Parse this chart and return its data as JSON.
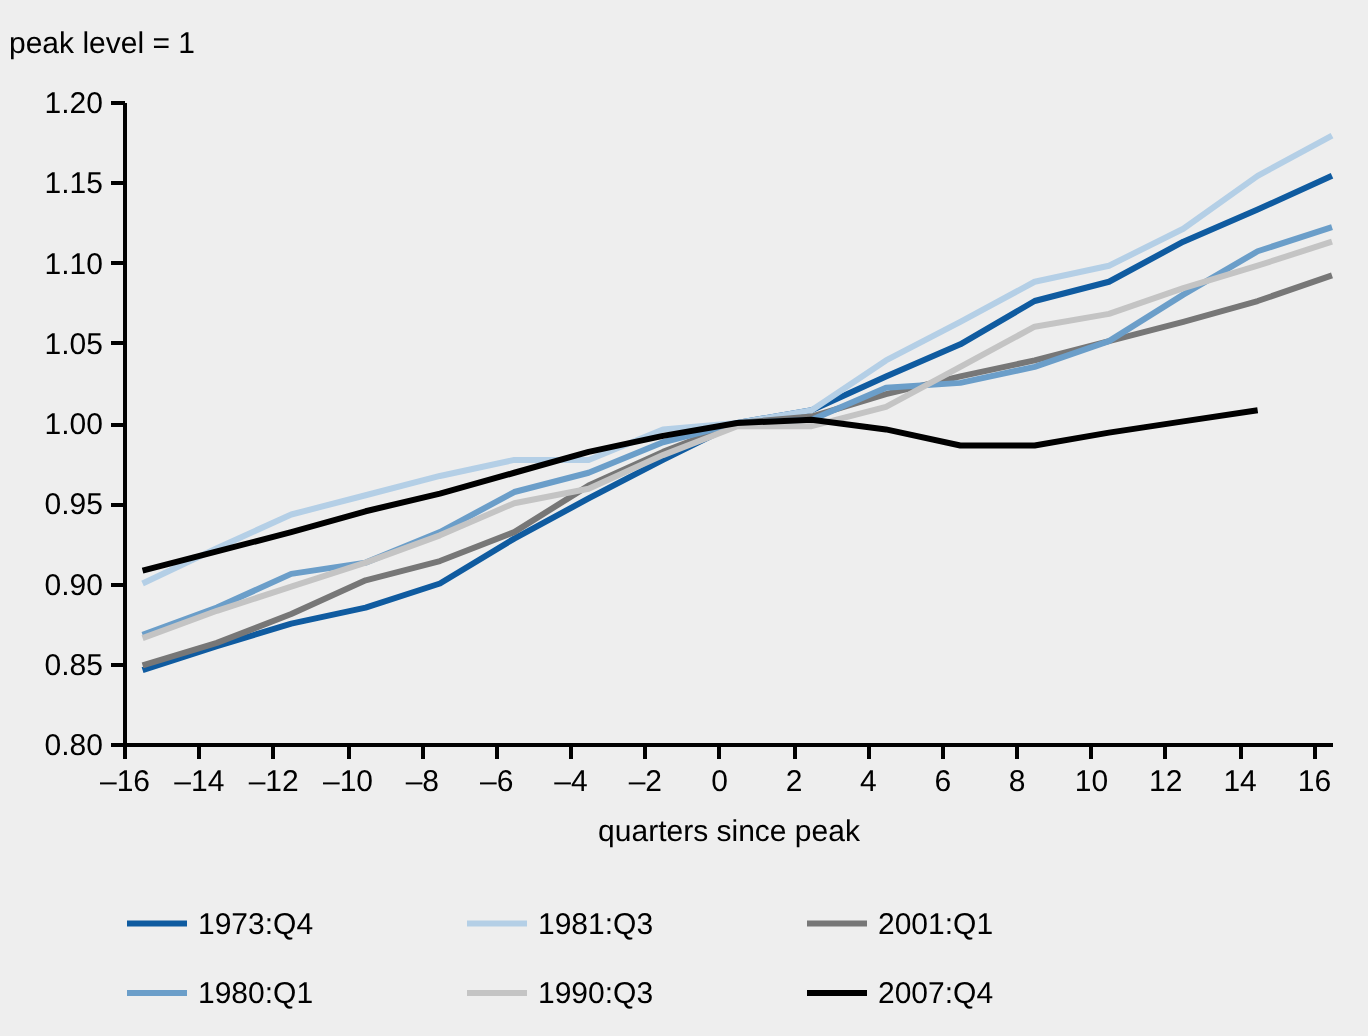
{
  "chart_data": {
    "type": "line",
    "ylabel": "peak level = 1",
    "xlabel": "quarters since peak",
    "x": [
      -15.5,
      -13.5,
      -11.5,
      -9.5,
      -7.5,
      -5.5,
      -3.5,
      -1.5,
      0.5,
      2.5,
      4.5,
      6.5,
      8.5,
      10.5,
      12.5,
      14.5,
      16.5
    ],
    "series": [
      {
        "name": "1973:Q4",
        "color": "#0f5ba0",
        "values": [
          0.846,
          0.861,
          0.875,
          0.885,
          0.9,
          0.928,
          0.953,
          0.977,
          1.0,
          1.008,
          1.029,
          1.049,
          1.076,
          1.088,
          1.113,
          1.133,
          1.154
        ]
      },
      {
        "name": "1981:Q3",
        "color": "#b4cfe6",
        "values": [
          0.9,
          0.922,
          0.943,
          0.955,
          0.967,
          0.977,
          0.977,
          0.996,
          1.0,
          1.008,
          1.039,
          1.063,
          1.088,
          1.098,
          1.121,
          1.154,
          1.179
        ]
      },
      {
        "name": "2001:Q1",
        "color": "#777777",
        "values": [
          0.849,
          0.863,
          0.881,
          0.902,
          0.914,
          0.932,
          0.961,
          0.982,
          1.0,
          1.004,
          1.018,
          1.029,
          1.039,
          1.051,
          1.063,
          1.076,
          1.092
        ]
      },
      {
        "name": "1980:Q1",
        "color": "#6b9ec9",
        "values": [
          0.868,
          0.885,
          0.906,
          0.913,
          0.932,
          0.957,
          0.969,
          0.988,
          1.0,
          1.002,
          1.022,
          1.025,
          1.035,
          1.051,
          1.08,
          1.107,
          1.122
        ]
      },
      {
        "name": "1990:Q3",
        "color": "#c4c4c4",
        "values": [
          0.866,
          0.883,
          0.898,
          0.913,
          0.93,
          0.95,
          0.959,
          0.98,
          0.998,
          0.998,
          1.01,
          1.035,
          1.06,
          1.068,
          1.084,
          1.098,
          1.113
        ]
      },
      {
        "name": "2007:Q4",
        "color": "#000000",
        "values": [
          0.908,
          0.92,
          0.932,
          0.945,
          0.956,
          0.969,
          0.982,
          0.992,
          1.0,
          1.002,
          0.996,
          0.986,
          0.986,
          0.994,
          1.001,
          1.008,
          null
        ]
      }
    ],
    "xlim": [
      -16,
      16.5
    ],
    "xticks": [
      {
        "value": -16,
        "label": "–16"
      },
      {
        "value": -14,
        "label": "–14"
      },
      {
        "value": -12,
        "label": "–12"
      },
      {
        "value": -10,
        "label": "–10"
      },
      {
        "value": -8,
        "label": "–8"
      },
      {
        "value": -6,
        "label": "–6"
      },
      {
        "value": -4,
        "label": "–4"
      },
      {
        "value": -2,
        "label": "–2"
      },
      0,
      2,
      4,
      6,
      8,
      10,
      12,
      14,
      16
    ],
    "ylim": [
      0.8,
      1.2
    ],
    "yticks": [
      {
        "value": 0.8,
        "label": "0.80"
      },
      {
        "value": 0.85,
        "label": "0.85"
      },
      {
        "value": 0.9,
        "label": "0.90"
      },
      {
        "value": 0.95,
        "label": "0.95"
      },
      {
        "value": 1.0,
        "label": "1.00"
      },
      {
        "value": 1.05,
        "label": "1.05"
      },
      {
        "value": 1.1,
        "label": "1.10"
      },
      {
        "value": 1.15,
        "label": "1.15"
      },
      {
        "value": 1.2,
        "label": "1.20"
      }
    ],
    "grid": false,
    "legend": "bottom",
    "marker": "none",
    "line_style": "solid"
  }
}
